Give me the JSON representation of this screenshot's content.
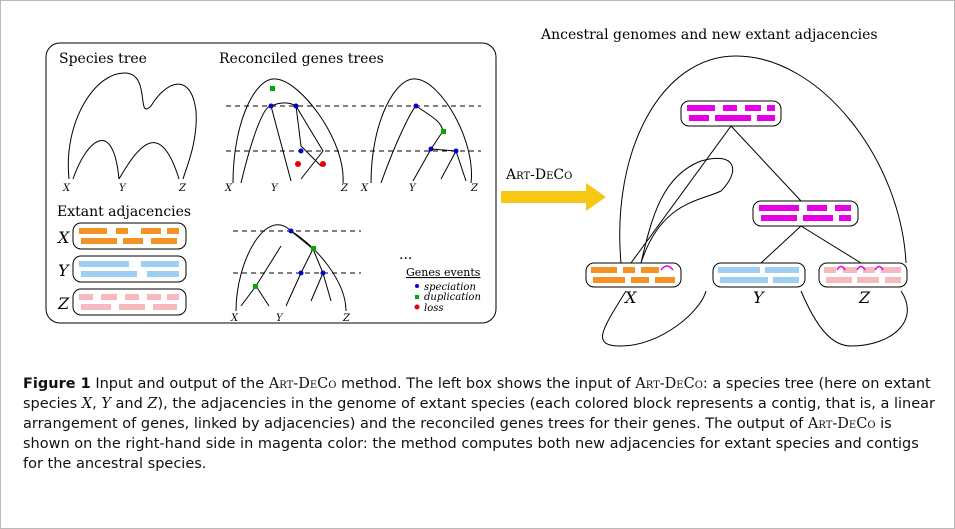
{
  "left_box": {
    "species_title": "Species tree",
    "genes_title": "Reconciled genes trees",
    "adjacency_title": "Extant adjacencies",
    "leaves": [
      "X",
      "Y",
      "Z"
    ],
    "ellipsis": "...",
    "legend": {
      "title": "Genes events",
      "items": [
        "speciation",
        "duplication",
        "loss"
      ]
    }
  },
  "arrow_label": "Art-DeCo",
  "right_title": "Ancestral genomes and new extant adjacencies",
  "caption": {
    "label": "Figure 1",
    "segments": [
      "Input and output of the ",
      "Art-DeCo",
      " method. The left box shows the input of ",
      "Art-DeCo",
      ": a species tree (here on extant species ",
      "X",
      ", ",
      "Y",
      " and ",
      "Z",
      "), the adjacencies in the genome of extant species (each colored block represents a contig, that is, a linear arrangement of genes, linked by adjacencies) and the reconciled genes trees for their genes. The output of ",
      "Art-DeCo",
      " is shown on the right-hand side in magenta color: the method computes both new adjacencies for extant species and contigs for the ancestral species."
    ]
  }
}
